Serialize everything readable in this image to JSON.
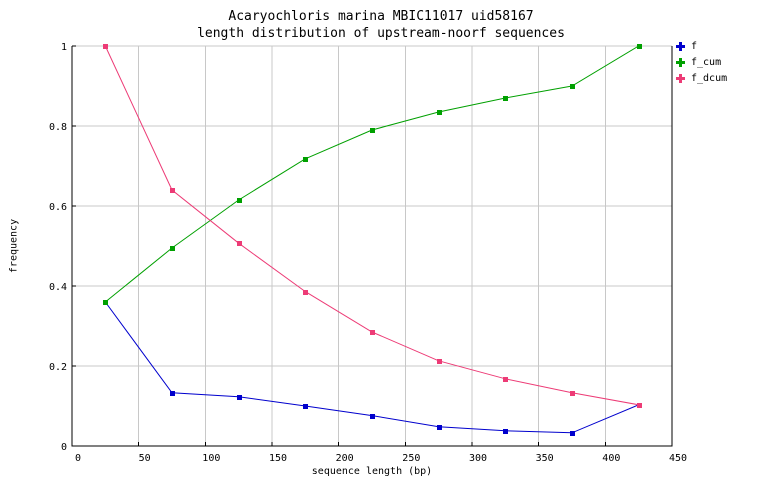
{
  "chart_data": {
    "type": "line",
    "title_line1": "Acaryochloris marina MBIC11017 uid58167",
    "title_line2": "length distribution of upstream-noorf sequences",
    "xlabel": "sequence length (bp)",
    "ylabel": "frequency",
    "xlim": [
      0,
      450
    ],
    "ylim": [
      0,
      1
    ],
    "xticks": [
      0,
      50,
      100,
      150,
      200,
      250,
      300,
      350,
      400,
      450
    ],
    "yticks": [
      0,
      0.2,
      0.4,
      0.6,
      0.8,
      1
    ],
    "ytick_labels": [
      "0",
      "0.2",
      "0.4",
      "0.6",
      "0.8",
      "1"
    ],
    "grid": true,
    "legend_position": "outside-top-right",
    "x": [
      25,
      75,
      125,
      175,
      225,
      275,
      325,
      375,
      425
    ],
    "series": [
      {
        "name": "f",
        "color": "#0000cd",
        "marker": "square",
        "values": [
          0.36,
          0.133,
          0.123,
          0.1,
          0.076,
          0.048,
          0.038,
          0.033,
          0.103
        ]
      },
      {
        "name": "f_cum",
        "color": "#00a000",
        "marker": "square",
        "values": [
          0.36,
          0.495,
          0.615,
          0.718,
          0.79,
          0.835,
          0.87,
          0.9,
          1.0
        ]
      },
      {
        "name": "f_dcum",
        "color": "#ed3b76",
        "marker": "square",
        "values": [
          1.0,
          0.64,
          0.507,
          0.386,
          0.285,
          0.213,
          0.168,
          0.133,
          0.103
        ]
      }
    ],
    "colors": {
      "grid": "#c8c8c8",
      "axis": "#000000",
      "text": "#000000",
      "background": "#ffffff"
    }
  }
}
